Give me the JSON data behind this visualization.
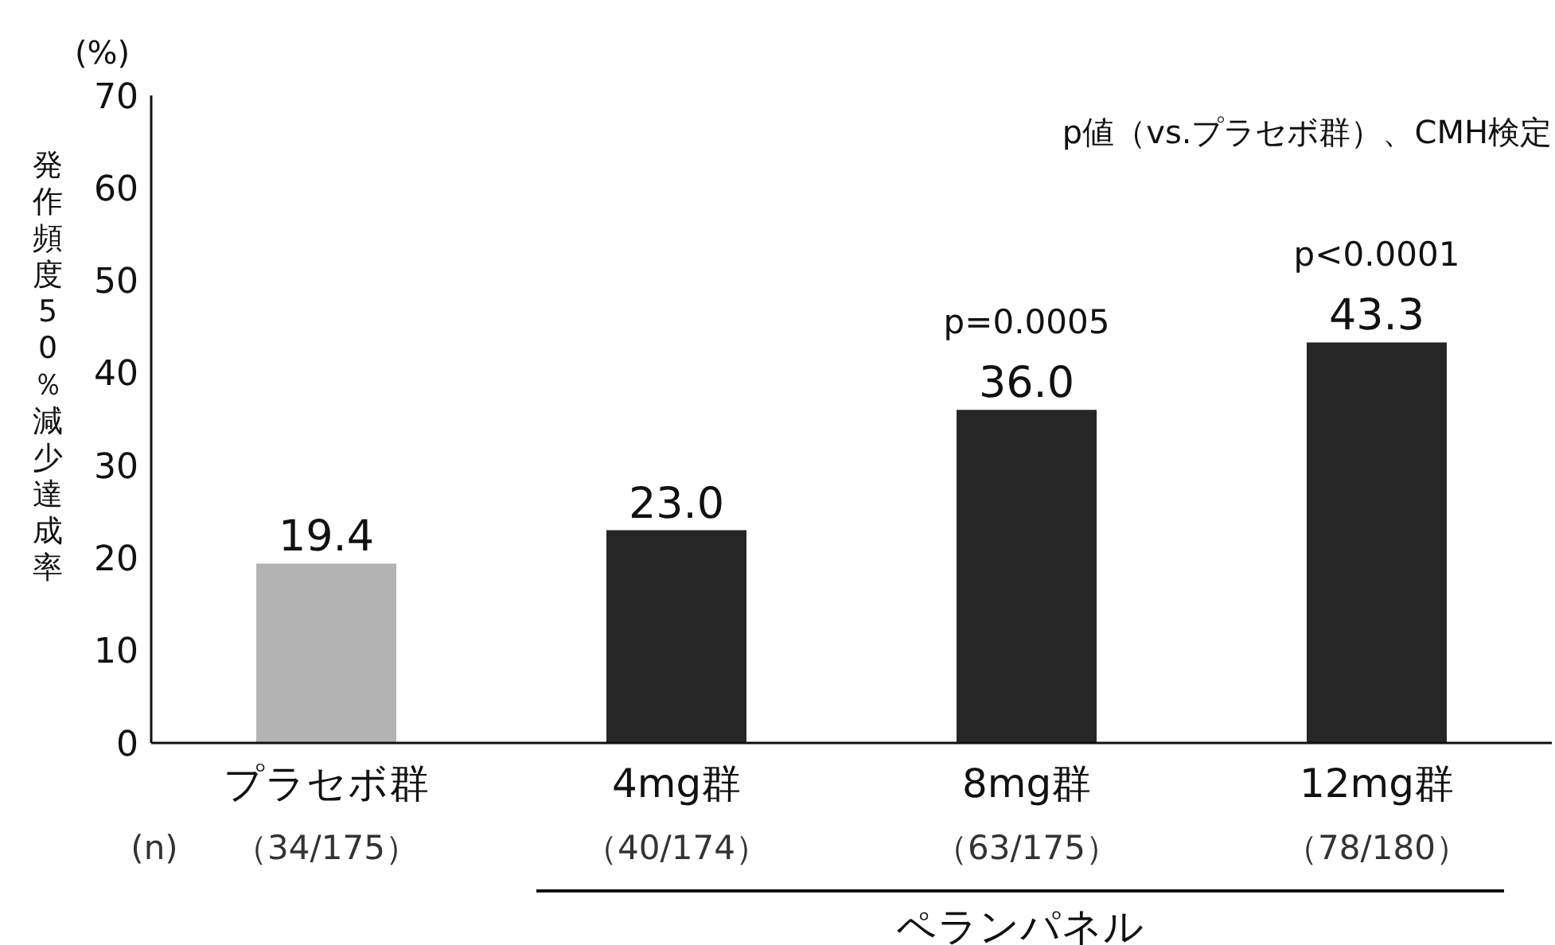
{
  "chart_data": {
    "type": "bar",
    "ylabel": "発作頻度50％減少達成率",
    "categories": [
      "プラセボ群",
      "4mg群",
      "8mg群",
      "12mg群"
    ],
    "values": [
      19.4,
      23.0,
      36.0,
      43.3
    ],
    "colors": [
      "#b3b3b3",
      "#262626",
      "#262626",
      "#262626"
    ],
    "value_labels": [
      "19.4",
      "23.0",
      "36.0",
      "43.3"
    ],
    "ylim": [
      0,
      70
    ],
    "yticks": [
      0,
      10,
      20,
      30,
      40,
      50,
      60,
      70
    ],
    "grid": false,
    "legend": false,
    "annotations": [
      "(%)",
      "p値（vs.プラセボ群）、CMH検定",
      "(n)",
      "ペランパネル",
      "（34/175）",
      "（40/174）",
      "（63/175）",
      "（78/180）",
      {
        "text": "p=0.0005",
        "x": "8mg群",
        "y": 36.0
      },
      {
        "text": "p<0.0001",
        "x": "12mg群",
        "y": 43.3
      }
    ]
  }
}
